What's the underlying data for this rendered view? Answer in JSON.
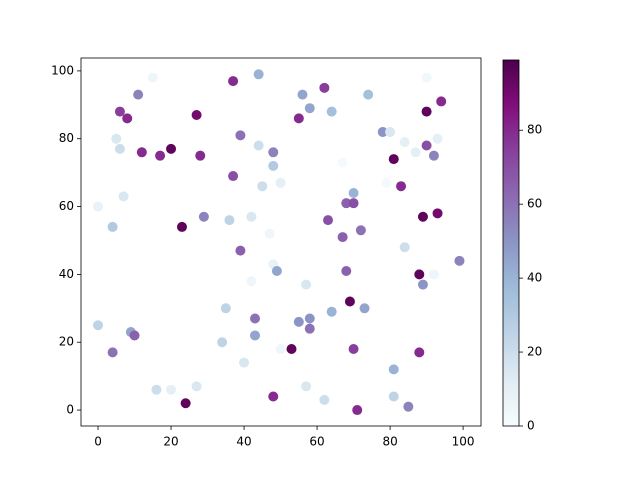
{
  "chart_data": {
    "type": "scatter",
    "colormap": "BuPu",
    "clim": [
      0,
      99
    ],
    "x": [
      15,
      44,
      37,
      90,
      62,
      56,
      74,
      11,
      94,
      6,
      8,
      27,
      58,
      64,
      90,
      55,
      78,
      80,
      5,
      39,
      93,
      6,
      20,
      12,
      17,
      28,
      44,
      48,
      84,
      87,
      90,
      92,
      81,
      67,
      48,
      37,
      45,
      50,
      79,
      83,
      7,
      70,
      0,
      68,
      70,
      89,
      93,
      29,
      36,
      42,
      63,
      4,
      23,
      72,
      47,
      67,
      84,
      39,
      99,
      48,
      49,
      68,
      88,
      92,
      42,
      57,
      89,
      69,
      35,
      73,
      64,
      43,
      58,
      55,
      0,
      58,
      9,
      10,
      43,
      34,
      50,
      53,
      70,
      88,
      4,
      40,
      81,
      16,
      20,
      27,
      57,
      24,
      48,
      62,
      81,
      85,
      71
    ],
    "values": [
      98,
      99,
      97,
      98,
      95,
      93,
      93,
      93,
      91,
      88,
      86,
      87,
      89,
      88,
      88,
      86,
      82,
      82,
      80,
      81,
      80,
      77,
      77,
      76,
      75,
      75,
      78,
      76,
      79,
      76,
      78,
      75,
      74,
      73,
      72,
      69,
      66,
      67,
      67,
      66,
      63,
      64,
      60,
      61,
      61,
      57,
      58,
      57,
      56,
      57,
      56,
      54,
      54,
      53,
      52,
      51,
      48,
      47,
      44,
      43,
      41,
      41,
      40,
      40,
      38,
      37,
      37,
      32,
      30,
      30,
      29,
      27,
      27,
      26,
      25,
      24,
      23,
      22,
      22,
      20,
      18,
      18,
      18,
      17,
      17,
      14,
      12,
      6,
      6,
      7,
      7,
      2,
      4,
      3,
      4,
      1,
      0
    ],
    "color_values": [
      5,
      40,
      80,
      3,
      75,
      45,
      35,
      55,
      80,
      75,
      80,
      90,
      45,
      35,
      95,
      80,
      50,
      15,
      15,
      60,
      10,
      20,
      95,
      80,
      80,
      80,
      20,
      55,
      10,
      10,
      70,
      55,
      95,
      2,
      30,
      70,
      20,
      10,
      2,
      80,
      15,
      40,
      8,
      65,
      70,
      95,
      90,
      55,
      25,
      15,
      70,
      30,
      95,
      60,
      5,
      65,
      20,
      65,
      55,
      8,
      45,
      65,
      95,
      5,
      5,
      15,
      50,
      95,
      25,
      45,
      40,
      60,
      50,
      50,
      25,
      60,
      45,
      65,
      45,
      25,
      5,
      95,
      75,
      80,
      60,
      15,
      40,
      20,
      10,
      15,
      15,
      95,
      80,
      20,
      25,
      55,
      80
    ],
    "xlim": [
      -4.66,
      104.9
    ],
    "ylim": [
      -4.7,
      103.8
    ],
    "xticks": [
      0,
      20,
      40,
      60,
      80,
      100
    ],
    "yticks": [
      0,
      20,
      40,
      60,
      80,
      100
    ],
    "colorbar_ticks": [
      0,
      20,
      40,
      60,
      80
    ]
  }
}
